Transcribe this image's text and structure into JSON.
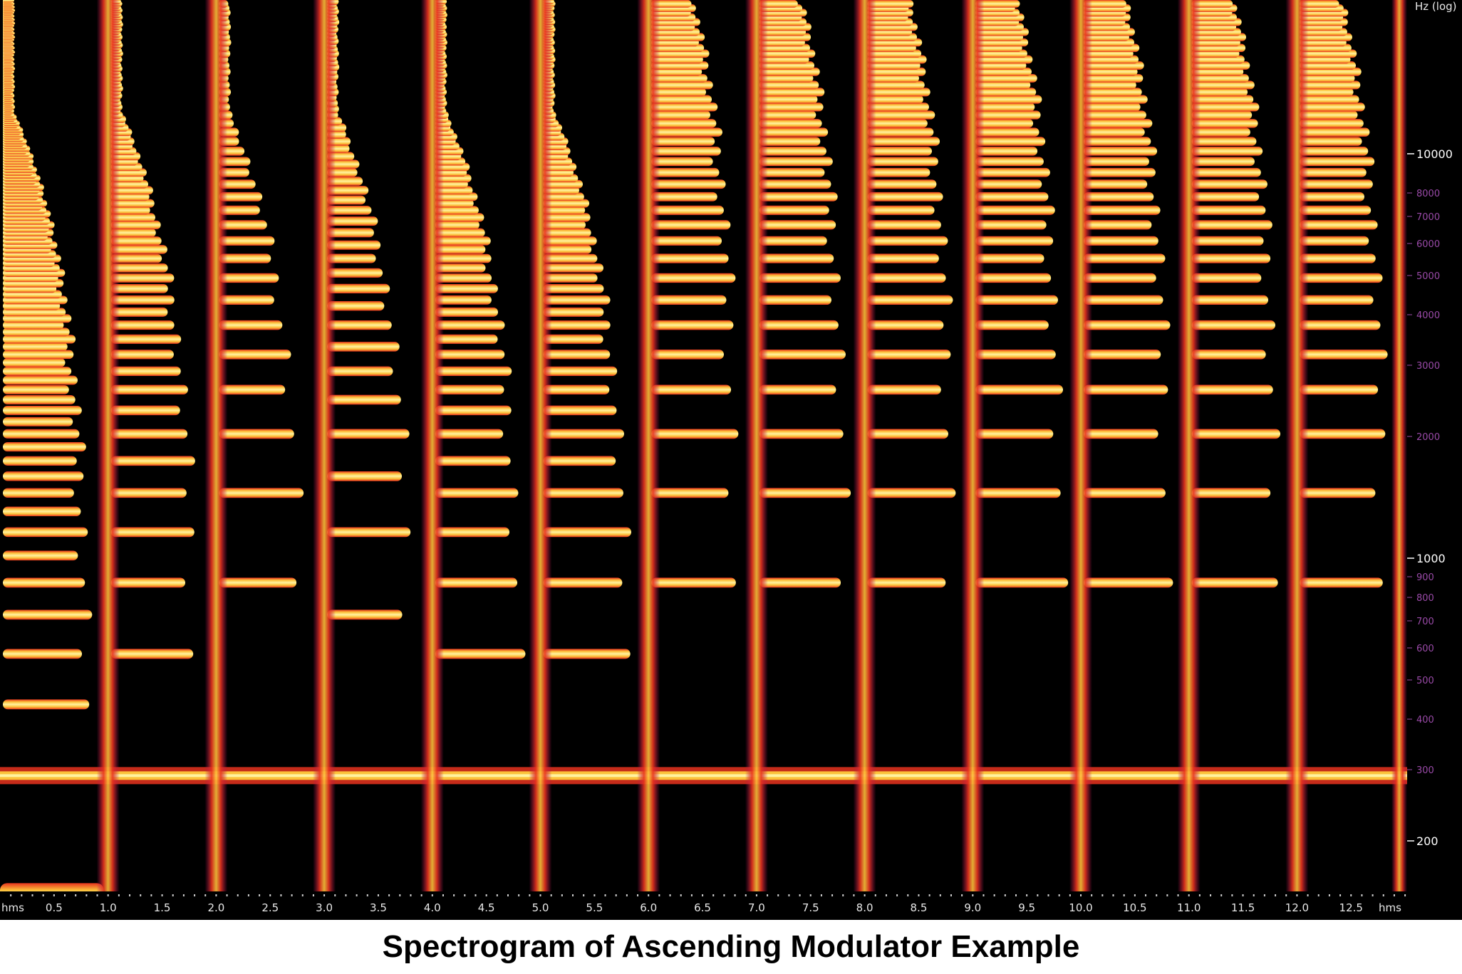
{
  "chart_data": {
    "type": "heatmap",
    "title": "Spectrogram of Ascending Modulator Example",
    "x_unit_label": "hms",
    "y_unit_label": "Hz (log)",
    "xlim": [
      0,
      13.05
    ],
    "ylim": [
      150,
      24000
    ],
    "x_ticks": [
      0.5,
      1.0,
      1.5,
      2.0,
      2.5,
      3.0,
      3.5,
      4.0,
      4.5,
      5.0,
      5.5,
      6.0,
      6.5,
      7.0,
      7.5,
      8.0,
      8.5,
      9.0,
      9.5,
      10.0,
      10.5,
      11.0,
      11.5,
      12.0,
      12.5
    ],
    "x_tick_labels": [
      "0.5",
      "1.0",
      "1.5",
      "2.0",
      "2.5",
      "3.0",
      "3.5",
      "4.0",
      "4.5",
      "5.0",
      "5.5",
      "6.0",
      "6.5",
      "7.0",
      "7.5",
      "8.0",
      "8.5",
      "9.0",
      "9.5",
      "10.0",
      "10.5",
      "11.0",
      "11.5",
      "12.0",
      "12.5"
    ],
    "y_ticks_major": [
      200,
      1000,
      10000
    ],
    "y_tick_labels_major": [
      "200",
      "1000",
      "10000"
    ],
    "y_ticks_minor": [
      300,
      400,
      500,
      600,
      700,
      800,
      900,
      2000,
      3000,
      4000,
      5000,
      6000,
      7000,
      8000
    ],
    "y_tick_labels_minor": [
      "300",
      "400",
      "500",
      "600",
      "700",
      "800",
      "900",
      "2000",
      "3000",
      "4000",
      "5000",
      "6000",
      "7000",
      "8000"
    ],
    "carrier_hz": 290,
    "segments": [
      {
        "start": 0,
        "end": 1,
        "modulator_hz": 145,
        "spacing_hz": 145
      },
      {
        "start": 1,
        "end": 2,
        "modulator_hz": 290,
        "spacing_hz": 290
      },
      {
        "start": 2,
        "end": 3,
        "modulator_hz": 580,
        "spacing_hz": 580
      },
      {
        "start": 3,
        "end": 4,
        "modulator_hz": 870,
        "spacing_hz": 435
      },
      {
        "start": 4,
        "end": 5,
        "modulator_hz": 1160,
        "spacing_hz": 290
      },
      {
        "start": 5,
        "end": 6,
        "modulator_hz": 1450,
        "spacing_hz": 290
      },
      {
        "start": 6,
        "end": 7,
        "modulator_hz": 1740,
        "spacing_hz": 580
      },
      {
        "start": 7,
        "end": 8,
        "modulator_hz": 2030,
        "spacing_hz": 580
      },
      {
        "start": 8,
        "end": 9,
        "modulator_hz": 2320,
        "spacing_hz": 580
      },
      {
        "start": 9,
        "end": 10,
        "modulator_hz": 2610,
        "spacing_hz": 580
      },
      {
        "start": 10,
        "end": 11,
        "modulator_hz": 2900,
        "spacing_hz": 580
      },
      {
        "start": 11,
        "end": 12,
        "modulator_hz": 3190,
        "spacing_hz": 580
      },
      {
        "start": 12,
        "end": 13,
        "modulator_hz": 3480,
        "spacing_hz": 580
      }
    ],
    "colormap": [
      "#000000",
      "#2a0845",
      "#6a1a6a",
      "#b0125a",
      "#e8321e",
      "#f97a12",
      "#fcc23a",
      "#fff2a0"
    ]
  },
  "caption": "Spectrogram of Ascending Modulator Example"
}
